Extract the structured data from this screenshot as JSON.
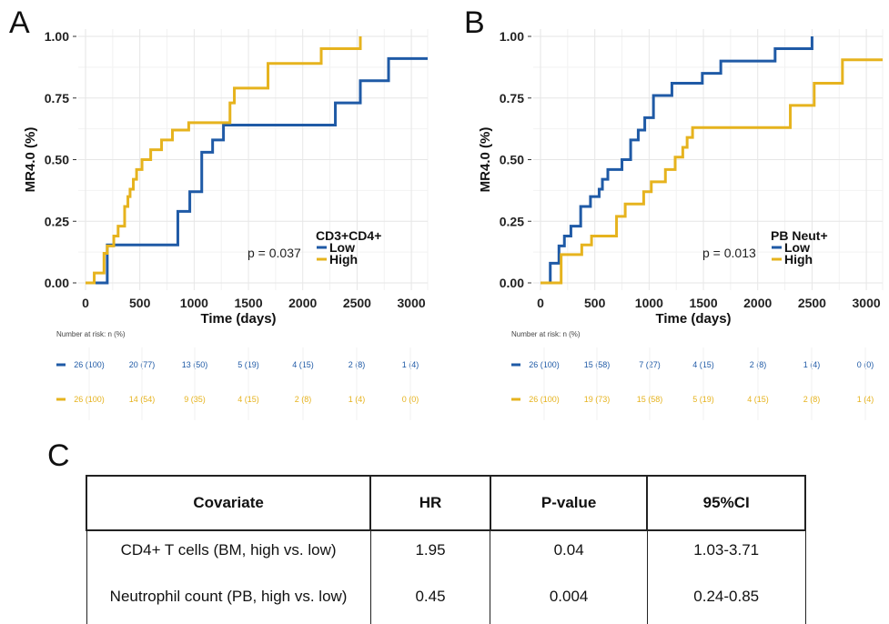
{
  "panels": [
    {
      "letter": "A",
      "pvalue": "p = 0.037",
      "legend_title": "CD3+CD4+",
      "ylabel": "MR4.0 (%)",
      "xlabel": "Time (days)",
      "risk_title": "Number at risk: n (%)",
      "colors": {
        "Low": "#1f5aa6",
        "High": "#e6b31e"
      },
      "risk": {
        "Low": [
          "26 (100)",
          "20 (77)",
          "13 (50)",
          "5 (19)",
          "4 (15)",
          "2 (8)",
          "1 (4)"
        ],
        "High": [
          "26 (100)",
          "14 (54)",
          "9 (35)",
          "4 (15)",
          "2 (8)",
          "1 (4)",
          "0 (0)"
        ]
      }
    },
    {
      "letter": "B",
      "pvalue": "p = 0.013",
      "legend_title": "PB Neut+",
      "ylabel": "MR4.0 (%)",
      "xlabel": "Time (days)",
      "risk_title": "Number at risk: n (%)",
      "colors": {
        "Low": "#1f5aa6",
        "High": "#e6b31e"
      },
      "risk": {
        "Low": [
          "26 (100)",
          "15 (58)",
          "7 (27)",
          "4 (15)",
          "2 (8)",
          "1 (4)",
          "0 (0)"
        ],
        "High": [
          "26 (100)",
          "19 (73)",
          "15 (58)",
          "5 (19)",
          "4 (15)",
          "2 (8)",
          "1 (4)"
        ]
      }
    }
  ],
  "chart_data": [
    {
      "type": "line",
      "step": true,
      "xlabel": "Time (days)",
      "ylabel": "MR4.0 (%)",
      "xlim": [
        0,
        3150
      ],
      "ylim": [
        0,
        1
      ],
      "xticks": [
        0,
        500,
        1000,
        1500,
        2000,
        2500,
        3000
      ],
      "yticks": [
        "0.00",
        "0.25",
        "0.50",
        "0.75",
        "1.00"
      ],
      "legend_title": "CD3+CD4+",
      "series": [
        {
          "name": "Low",
          "x": [
            0,
            200,
            760,
            850,
            960,
            1070,
            1170,
            1270,
            2300,
            2530,
            2790,
            3150
          ],
          "y": [
            0,
            0.154,
            0.154,
            0.29,
            0.37,
            0.53,
            0.58,
            0.64,
            0.73,
            0.82,
            0.91,
            0.91
          ]
        },
        {
          "name": "High",
          "x": [
            0,
            80,
            170,
            200,
            260,
            300,
            360,
            390,
            410,
            440,
            470,
            520,
            600,
            700,
            800,
            950,
            1330,
            1370,
            1680,
            2170,
            2530
          ],
          "y": [
            0,
            0.04,
            0.12,
            0.15,
            0.19,
            0.23,
            0.31,
            0.35,
            0.38,
            0.42,
            0.46,
            0.5,
            0.54,
            0.58,
            0.62,
            0.65,
            0.73,
            0.79,
            0.89,
            0.95,
            1.0
          ]
        }
      ]
    },
    {
      "type": "line",
      "step": true,
      "xlabel": "Time (days)",
      "ylabel": "MR4.0 (%)",
      "xlim": [
        0,
        3150
      ],
      "ylim": [
        0,
        1
      ],
      "xticks": [
        0,
        500,
        1000,
        1500,
        2000,
        2500,
        3000
      ],
      "yticks": [
        "0.00",
        "0.25",
        "0.50",
        "0.75",
        "1.00"
      ],
      "legend_title": "PB Neut+",
      "series": [
        {
          "name": "Low",
          "x": [
            0,
            90,
            170,
            220,
            280,
            370,
            460,
            540,
            570,
            620,
            750,
            830,
            900,
            960,
            1040,
            1210,
            1490,
            1660,
            2160,
            2500
          ],
          "y": [
            0,
            0.08,
            0.15,
            0.19,
            0.23,
            0.31,
            0.35,
            0.38,
            0.42,
            0.46,
            0.5,
            0.58,
            0.62,
            0.67,
            0.76,
            0.81,
            0.85,
            0.9,
            0.95,
            1.0
          ]
        },
        {
          "name": "High",
          "x": [
            0,
            190,
            380,
            470,
            700,
            780,
            950,
            1020,
            1150,
            1240,
            1310,
            1350,
            1400,
            2300,
            2520,
            2780,
            3150
          ],
          "y": [
            0,
            0.115,
            0.154,
            0.19,
            0.27,
            0.32,
            0.37,
            0.41,
            0.46,
            0.51,
            0.55,
            0.59,
            0.63,
            0.72,
            0.81,
            0.905,
            0.905
          ]
        }
      ]
    }
  ],
  "table": {
    "letter": "C",
    "headers": [
      "Covariate",
      "HR",
      "P-value",
      "95%CI"
    ],
    "rows": [
      [
        "CD4+ T cells (BM, high vs. low)",
        "1.95",
        "0.04",
        "1.03-3.71"
      ],
      [
        "Neutrophil count (PB, high vs. low)",
        "0.45",
        "0.004",
        "0.24-0.85"
      ]
    ]
  }
}
